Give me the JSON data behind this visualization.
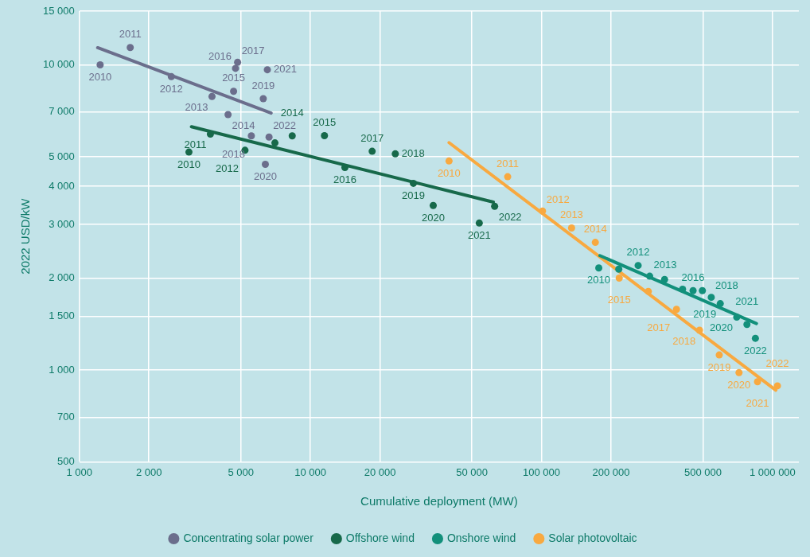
{
  "chart_data": {
    "type": "scatter",
    "xlabel": "Cumulative deployment (MW)",
    "ylabel": "2022 USD/kW",
    "log": "xy",
    "grid": true,
    "legend": "bottom",
    "marker": "circle",
    "xlim": [
      1000,
      1300000
    ],
    "ylim": [
      500,
      15000
    ],
    "xticks": [
      {
        "value": 1000,
        "label": "1 000"
      },
      {
        "value": 2000,
        "label": "2 000"
      },
      {
        "value": 5000,
        "label": "5 000"
      },
      {
        "value": 10000,
        "label": "10 000"
      },
      {
        "value": 20000,
        "label": "20 000"
      },
      {
        "value": 50000,
        "label": "50 000"
      },
      {
        "value": 100000,
        "label": "100 000"
      },
      {
        "value": 200000,
        "label": "200 000"
      },
      {
        "value": 500000,
        "label": "500 000"
      },
      {
        "value": 1000000,
        "label": "1 000 000"
      }
    ],
    "yticks": [
      500,
      700,
      {
        "value": 1000,
        "label": "1 000"
      },
      {
        "value": 1500,
        "label": "1 500"
      },
      {
        "value": 2000,
        "label": "2 000"
      },
      {
        "value": 3000,
        "label": "3 000"
      },
      {
        "value": 4000,
        "label": "4 000"
      },
      {
        "value": 5000,
        "label": "5 000"
      },
      {
        "value": 7000,
        "label": "7 000"
      },
      {
        "value": 10000,
        "label": "10 000"
      },
      {
        "value": 15000,
        "label": "15 000"
      }
    ],
    "series": [
      {
        "name": "Concentrating solar power",
        "color": "#6b6e8c",
        "x": [
          1230,
          1660,
          2500,
          3750,
          4400,
          4650,
          4740,
          4840,
          5550,
          6250,
          6380,
          6510,
          6620
        ],
        "values": [
          10000,
          11400,
          9150,
          7880,
          6870,
          8190,
          9740,
          10200,
          5850,
          7750,
          4720,
          9640,
          5800
        ]
      },
      {
        "name": "Offshore wind",
        "color": "#17694a",
        "x": [
          2980,
          3690,
          5210,
          7020,
          8340,
          11500,
          14100,
          18500,
          23300,
          27900,
          34000,
          53800,
          62700
        ],
        "values": [
          5180,
          5930,
          5250,
          5550,
          5850,
          5860,
          4610,
          5210,
          5110,
          4090,
          3460,
          3030,
          3440
        ]
      },
      {
        "name": "Onshore wind",
        "color": "#12907b",
        "x": [
          177000,
          216000,
          262000,
          294000,
          341000,
          408000,
          453000,
          497000,
          543000,
          594000,
          700000,
          775000,
          843000
        ],
        "values": [
          2160,
          2140,
          2200,
          2030,
          1980,
          1840,
          1820,
          1820,
          1730,
          1650,
          1490,
          1410,
          1270
        ]
      },
      {
        "name": "Solar photovoltaic",
        "color": "#f8a940",
        "x": [
          39800,
          71400,
          101000,
          135000,
          171000,
          217000,
          290000,
          384000,
          483000,
          588000,
          716000,
          861000,
          1050000
        ],
        "values": [
          4840,
          4300,
          3320,
          2920,
          2620,
          2000,
          1810,
          1580,
          1350,
          1120,
          980,
          915,
          887
        ]
      },
      {
        "type": "line",
        "marker": "none",
        "color": "#6b6e8c",
        "x": [
          1200,
          6760
        ],
        "values": [
          11380,
          6950
        ]
      },
      {
        "type": "line",
        "marker": "none",
        "color": "#17694a",
        "x": [
          3055,
          61900
        ],
        "values": [
          6270,
          3550
        ]
      },
      {
        "type": "line",
        "marker": "none",
        "color": "#12907b",
        "x": [
          179000,
          852000
        ],
        "values": [
          2370,
          1420
        ]
      },
      {
        "type": "line",
        "marker": "none",
        "color": "#f8a940",
        "x": [
          39800,
          1033000
        ],
        "values": [
          5560,
          859
        ]
      }
    ],
    "annotations": [
      {
        "text": "2010",
        "x": 1230,
        "y": 10000
      },
      {
        "text": "2011",
        "x": 1660,
        "y": 11400
      },
      {
        "text": "2012",
        "x": 2500,
        "y": 9150
      },
      {
        "text": "2013",
        "x": 3750,
        "y": 7880
      },
      {
        "text": "2014",
        "x": 4400,
        "y": 6870
      },
      {
        "text": "2015",
        "x": 4650,
        "y": 8190
      },
      {
        "text": "2016",
        "x": 4740,
        "y": 9740
      },
      {
        "text": "2017",
        "x": 4840,
        "y": 10200
      },
      {
        "text": "2018",
        "x": 5550,
        "y": 5850
      },
      {
        "text": "2019",
        "x": 6250,
        "y": 7750
      },
      {
        "text": "2020",
        "x": 6380,
        "y": 4720
      },
      {
        "text": "2021",
        "x": 6510,
        "y": 9640
      },
      {
        "text": "2022",
        "x": 6620,
        "y": 5800
      },
      {
        "text": "2010",
        "x": 2980,
        "y": 5180
      },
      {
        "text": "2011",
        "x": 3690,
        "y": 5930
      },
      {
        "text": "2012",
        "x": 5210,
        "y": 5250
      },
      {
        "text": "2014",
        "x": 8340,
        "y": 5850
      },
      {
        "text": "2015",
        "x": 11500,
        "y": 5860
      },
      {
        "text": "2016",
        "x": 14100,
        "y": 4610
      },
      {
        "text": "2017",
        "x": 18500,
        "y": 5210
      },
      {
        "text": "2018",
        "x": 23300,
        "y": 5110
      },
      {
        "text": "2019",
        "x": 27900,
        "y": 4090
      },
      {
        "text": "2020",
        "x": 34000,
        "y": 3460
      },
      {
        "text": "2021",
        "x": 53800,
        "y": 3030
      },
      {
        "text": "2022",
        "x": 62700,
        "y": 3440
      },
      {
        "text": "2010",
        "x": 177000,
        "y": 2160
      },
      {
        "text": "2012",
        "x": 262000,
        "y": 2200
      },
      {
        "text": "2013",
        "x": 294000,
        "y": 2030
      },
      {
        "text": "2016",
        "x": 453000,
        "y": 1820
      },
      {
        "text": "2018",
        "x": 543000,
        "y": 1730
      },
      {
        "text": "2019",
        "x": 594000,
        "y": 1650
      },
      {
        "text": "2020",
        "x": 700000,
        "y": 1490
      },
      {
        "text": "2021",
        "x": 775000,
        "y": 1410
      },
      {
        "text": "2022",
        "x": 843000,
        "y": 1270
      },
      {
        "text": "2010",
        "x": 39800,
        "y": 4840
      },
      {
        "text": "2011",
        "x": 71400,
        "y": 4300
      },
      {
        "text": "2012",
        "x": 101000,
        "y": 3320
      },
      {
        "text": "2013",
        "x": 135000,
        "y": 2920
      },
      {
        "text": "2014",
        "x": 171000,
        "y": 2620
      },
      {
        "text": "2015",
        "x": 217000,
        "y": 2000
      },
      {
        "text": "2017",
        "x": 384000,
        "y": 1580
      },
      {
        "text": "2018",
        "x": 483000,
        "y": 1350
      },
      {
        "text": "2019",
        "x": 588000,
        "y": 1120
      },
      {
        "text": "2020",
        "x": 716000,
        "y": 980
      },
      {
        "text": "2021",
        "x": 861000,
        "y": 915
      },
      {
        "text": "2022",
        "x": 1050000,
        "y": 887
      }
    ]
  }
}
